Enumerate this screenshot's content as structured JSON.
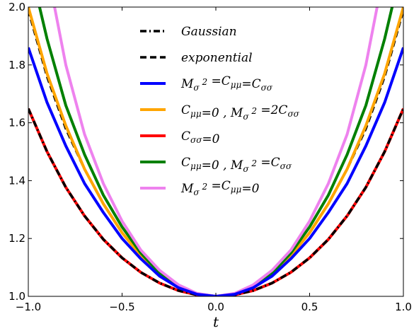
{
  "chart_data": {
    "type": "line",
    "xlabel": "t",
    "ylabel": "",
    "xlim": [
      -1.0,
      1.0
    ],
    "ylim": [
      1.0,
      2.0
    ],
    "xticks": [
      "−1.0",
      "−0.5",
      "0.0",
      "0.5",
      "1.0"
    ],
    "yticks": [
      "1.0",
      "1.2",
      "1.4",
      "1.6",
      "1.8",
      "2.0"
    ],
    "grid": false,
    "legend_position": "top-center",
    "series": [
      {
        "name": "Gaussian",
        "style": "dashdot",
        "color": "#000000",
        "x": [
          -1.0,
          -0.9,
          -0.8,
          -0.7,
          -0.6,
          -0.5,
          -0.4,
          -0.3,
          -0.2,
          -0.1,
          0.0,
          0.1,
          0.2,
          0.3,
          0.4,
          0.5,
          0.6,
          0.7,
          0.8,
          0.9,
          1.0
        ],
        "y": [
          1.649,
          1.5,
          1.377,
          1.278,
          1.197,
          1.133,
          1.083,
          1.046,
          1.02,
          1.005,
          1.0,
          1.005,
          1.02,
          1.046,
          1.083,
          1.133,
          1.197,
          1.278,
          1.377,
          1.5,
          1.649
        ]
      },
      {
        "name": "exponential",
        "style": "dashed",
        "color": "#000000",
        "x": [
          -1.0,
          -0.9,
          -0.8,
          -0.7,
          -0.6,
          -0.5,
          -0.4,
          -0.3,
          -0.2,
          -0.1,
          0.0,
          0.1,
          0.2,
          0.3,
          0.4,
          0.5,
          0.6,
          0.7,
          0.8,
          0.9,
          1.0
        ],
        "y": [
          1.99,
          1.76,
          1.58,
          1.44,
          1.32,
          1.22,
          1.14,
          1.08,
          1.03,
          1.008,
          1.0,
          1.008,
          1.03,
          1.08,
          1.14,
          1.22,
          1.32,
          1.44,
          1.58,
          1.76,
          1.99
        ]
      },
      {
        "name": "M_σ² = C_μμ = C_σσ",
        "legend_main": "M",
        "legend_sub": "σ",
        "legend_sup": "2",
        "legend_rest": "=C",
        "legend_rest_sub": "μμ",
        "legend_rest2": "=C",
        "legend_rest2_sub": "σσ",
        "style": "solid",
        "color": "#0000ff",
        "x": [
          -1.0,
          -0.9,
          -0.8,
          -0.7,
          -0.6,
          -0.5,
          -0.4,
          -0.3,
          -0.2,
          -0.1,
          0.0,
          0.1,
          0.2,
          0.3,
          0.4,
          0.5,
          0.6,
          0.7,
          0.8,
          0.9,
          1.0
        ],
        "y": [
          1.86,
          1.67,
          1.52,
          1.39,
          1.29,
          1.2,
          1.13,
          1.07,
          1.03,
          1.007,
          1.0,
          1.007,
          1.03,
          1.07,
          1.13,
          1.2,
          1.29,
          1.39,
          1.52,
          1.67,
          1.86
        ]
      },
      {
        "name": "C_μμ = 0 , M_σ² = 2C_σσ",
        "style": "solid",
        "color": "#ffa500",
        "x": [
          -1.0,
          -0.9,
          -0.8,
          -0.7,
          -0.6,
          -0.5,
          -0.4,
          -0.3,
          -0.2,
          -0.1,
          0.0,
          0.1,
          0.2,
          0.3,
          0.4,
          0.5,
          0.6,
          0.7,
          0.8,
          0.9,
          1.0
        ],
        "y": [
          2.0,
          1.77,
          1.59,
          1.44,
          1.32,
          1.22,
          1.14,
          1.08,
          1.03,
          1.008,
          1.0,
          1.008,
          1.03,
          1.08,
          1.14,
          1.22,
          1.32,
          1.44,
          1.59,
          1.77,
          2.0
        ]
      },
      {
        "name": "C_σσ = 0",
        "style": "solid",
        "color": "#ff0000",
        "x": [
          -1.0,
          -0.9,
          -0.8,
          -0.7,
          -0.6,
          -0.5,
          -0.4,
          -0.3,
          -0.2,
          -0.1,
          0.0,
          0.1,
          0.2,
          0.3,
          0.4,
          0.5,
          0.6,
          0.7,
          0.8,
          0.9,
          1.0
        ],
        "y": [
          1.649,
          1.5,
          1.377,
          1.278,
          1.197,
          1.133,
          1.083,
          1.046,
          1.02,
          1.005,
          1.0,
          1.005,
          1.02,
          1.046,
          1.083,
          1.133,
          1.197,
          1.278,
          1.377,
          1.5,
          1.649
        ]
      },
      {
        "name": "C_μμ = 0 , M_σ² = C_σσ",
        "style": "solid",
        "color": "#008000",
        "x": [
          -0.94,
          -0.9,
          -0.8,
          -0.7,
          -0.6,
          -0.5,
          -0.4,
          -0.3,
          -0.2,
          -0.1,
          0.0,
          0.1,
          0.2,
          0.3,
          0.4,
          0.5,
          0.6,
          0.7,
          0.8,
          0.9,
          0.94
        ],
        "y": [
          2.0,
          1.89,
          1.66,
          1.49,
          1.35,
          1.24,
          1.15,
          1.08,
          1.035,
          1.009,
          1.0,
          1.009,
          1.035,
          1.08,
          1.15,
          1.24,
          1.35,
          1.49,
          1.66,
          1.89,
          2.0
        ]
      },
      {
        "name": "M_σ² = C_μμ = 0",
        "style": "solid",
        "color": "#ee82ee",
        "x": [
          -0.86,
          -0.8,
          -0.7,
          -0.6,
          -0.5,
          -0.4,
          -0.3,
          -0.2,
          -0.1,
          0.0,
          0.1,
          0.2,
          0.3,
          0.4,
          0.5,
          0.6,
          0.7,
          0.8,
          0.86
        ],
        "y": [
          2.0,
          1.8,
          1.56,
          1.39,
          1.26,
          1.16,
          1.09,
          1.04,
          1.01,
          1.0,
          1.01,
          1.04,
          1.09,
          1.16,
          1.26,
          1.39,
          1.56,
          1.8,
          2.0
        ]
      }
    ]
  },
  "legend": {
    "entries": [
      {
        "parts": [
          {
            "t": "Gaussian"
          }
        ]
      },
      {
        "parts": [
          {
            "t": "exponential"
          }
        ]
      },
      {
        "parts": [
          {
            "t": "M"
          },
          {
            "t": "σ",
            "sub": true
          },
          {
            "t": " 2",
            "sup": true
          },
          {
            "t": " =C"
          },
          {
            "t": "μμ",
            "sub": true
          },
          {
            "t": "=C"
          },
          {
            "t": "σσ",
            "sub": true
          }
        ]
      },
      {
        "parts": [
          {
            "t": "C"
          },
          {
            "t": "μμ",
            "sub": true
          },
          {
            "t": "=0 , M"
          },
          {
            "t": "σ",
            "sub": true
          },
          {
            "t": " 2",
            "sup": true
          },
          {
            "t": " =2C"
          },
          {
            "t": "σσ",
            "sub": true
          }
        ]
      },
      {
        "parts": [
          {
            "t": "C"
          },
          {
            "t": "σσ",
            "sub": true
          },
          {
            "t": "=0"
          }
        ]
      },
      {
        "parts": [
          {
            "t": "C"
          },
          {
            "t": "μμ",
            "sub": true
          },
          {
            "t": "=0 , M"
          },
          {
            "t": "σ",
            "sub": true
          },
          {
            "t": " 2",
            "sup": true
          },
          {
            "t": " =C"
          },
          {
            "t": "σσ",
            "sub": true
          }
        ]
      },
      {
        "parts": [
          {
            "t": "M"
          },
          {
            "t": "σ",
            "sub": true
          },
          {
            "t": " 2",
            "sup": true
          },
          {
            "t": " =C"
          },
          {
            "t": "μμ",
            "sub": true
          },
          {
            "t": "=0"
          }
        ]
      }
    ]
  }
}
